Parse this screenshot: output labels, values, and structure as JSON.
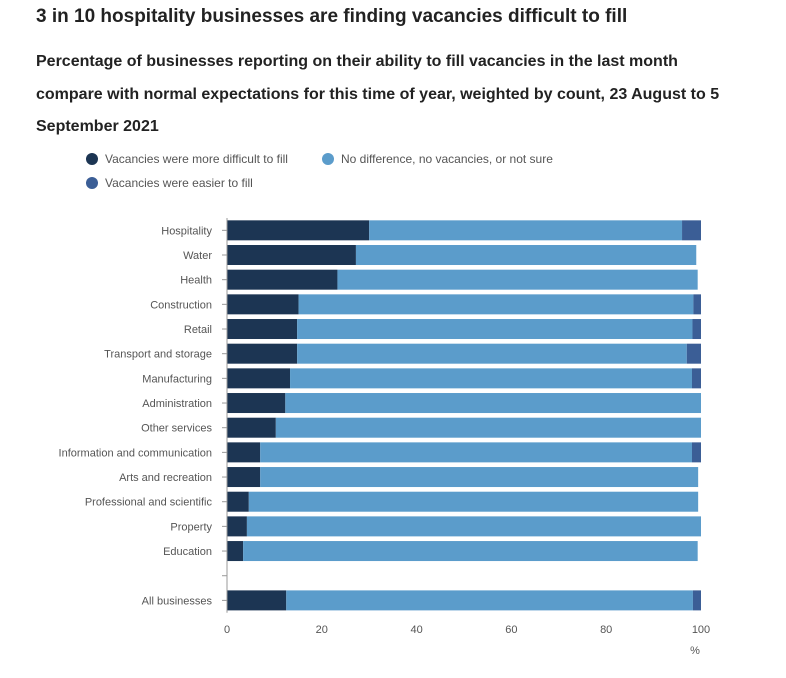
{
  "title": "3 in 10 hospitality businesses are finding vacancies difficult to fill",
  "subtitle": "Percentage of businesses reporting on their ability to fill vacancies in the last month compare with normal expectations for this time of year, weighted by count, 23 August to 5 September 2021",
  "colors": {
    "more_difficult": "#1c3553",
    "no_difference": "#5b9ccb",
    "easier": "#3b5e96",
    "axis": "#999999",
    "text": "#555555"
  },
  "chart_data": {
    "type": "bar",
    "orientation": "horizontal",
    "stacked": true,
    "categories": [
      "Hospitality",
      "Water",
      "Health",
      "Construction",
      "Retail",
      "Transport and storage",
      "Manufacturing",
      "Administration",
      "Other services",
      "Information and communication",
      "Arts and recreation",
      "Professional and scientific",
      "Property",
      "Education",
      "",
      "All businesses"
    ],
    "series": [
      {
        "name": "Vacancies were more difficult to fill",
        "values": [
          30,
          27.2,
          23.3,
          15.1,
          14.8,
          14.8,
          13.3,
          12.3,
          10.3,
          7.0,
          7.0,
          4.6,
          4.2,
          3.4,
          null,
          12.5
        ]
      },
      {
        "name": "No difference, no vacancies, or not sure",
        "values": [
          66.0,
          71.8,
          76.0,
          83.3,
          83.4,
          82.2,
          84.8,
          87.7,
          89.7,
          91.1,
          92.4,
          94.8,
          95.8,
          95.9,
          null,
          85.8
        ]
      },
      {
        "name": "Vacancies were easier to fill",
        "values": [
          4.0,
          0,
          0,
          1.6,
          1.8,
          3.0,
          1.9,
          0,
          0,
          1.9,
          0,
          0,
          0,
          0,
          null,
          1.7
        ]
      }
    ],
    "xlim": [
      0,
      100
    ],
    "xticks": [
      "0",
      "20",
      "40",
      "60",
      "80",
      "100"
    ],
    "xunit": "%",
    "legend_position": "top-left"
  }
}
